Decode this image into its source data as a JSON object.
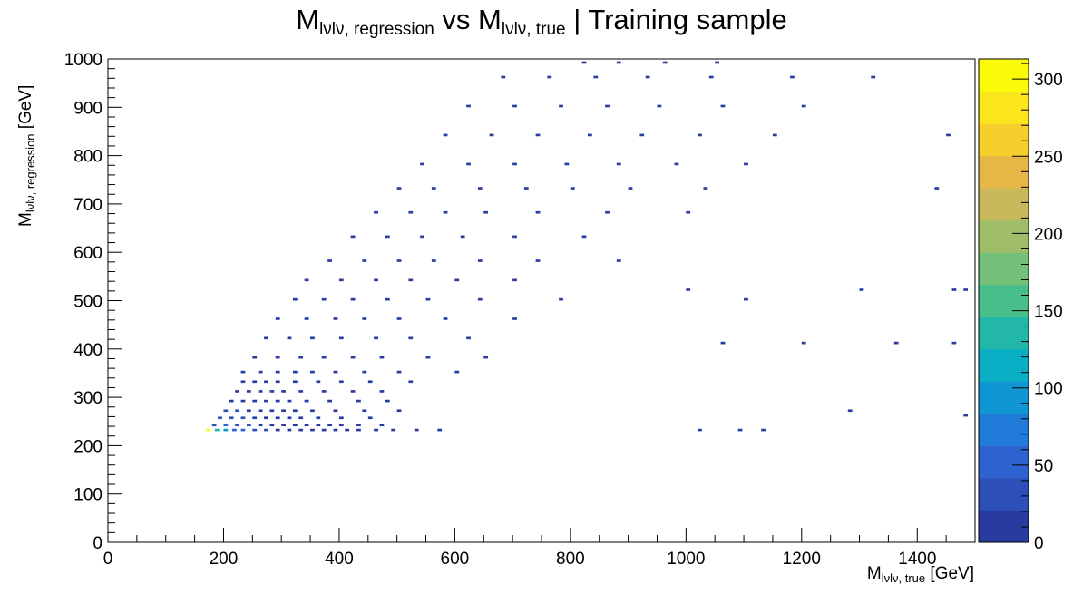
{
  "chart_data": {
    "type": "heatmap",
    "title_main_1": "M",
    "title_sub_1": "lνlν, regression",
    "title_mid": " vs M",
    "title_sub_2": "lνlν, true",
    "title_end": " | Training sample",
    "xlabel_main": "M",
    "xlabel_sub": "lνlν, true",
    "xlabel_unit": " [GeV]",
    "ylabel_main": "M",
    "ylabel_sub": "lνlν, regression",
    "ylabel_unit": " [GeV]",
    "xlim": [
      0,
      1500
    ],
    "ylim": [
      0,
      1000
    ],
    "xticks": [
      0,
      200,
      400,
      600,
      800,
      1000,
      1200,
      1400
    ],
    "yticks": [
      0,
      100,
      200,
      300,
      400,
      500,
      600,
      700,
      800,
      900,
      1000
    ],
    "colorbar": {
      "range": [
        0,
        313
      ],
      "ticks": [
        0,
        50,
        100,
        150,
        200,
        250,
        300
      ]
    },
    "bin_width": [
      7.5,
      5.0
    ],
    "points": [
      [
        170,
        230,
        310
      ],
      [
        185,
        230,
        140
      ],
      [
        200,
        230,
        90
      ],
      [
        215,
        230,
        60
      ],
      [
        230,
        230,
        45
      ],
      [
        250,
        230,
        35
      ],
      [
        270,
        230,
        25
      ],
      [
        290,
        230,
        20
      ],
      [
        310,
        230,
        15
      ],
      [
        330,
        230,
        12
      ],
      [
        350,
        230,
        10
      ],
      [
        370,
        230,
        8
      ],
      [
        390,
        230,
        6
      ],
      [
        410,
        230,
        5
      ],
      [
        430,
        230,
        4
      ],
      [
        460,
        230,
        3
      ],
      [
        490,
        230,
        2
      ],
      [
        530,
        230,
        2
      ],
      [
        570,
        230,
        1
      ],
      [
        180,
        240,
        30
      ],
      [
        200,
        240,
        45
      ],
      [
        220,
        240,
        35
      ],
      [
        240,
        240,
        25
      ],
      [
        260,
        240,
        20
      ],
      [
        280,
        240,
        15
      ],
      [
        300,
        240,
        12
      ],
      [
        320,
        240,
        10
      ],
      [
        340,
        240,
        8
      ],
      [
        360,
        240,
        6
      ],
      [
        380,
        240,
        5
      ],
      [
        400,
        240,
        4
      ],
      [
        430,
        240,
        3
      ],
      [
        470,
        240,
        2
      ],
      [
        190,
        255,
        28
      ],
      [
        210,
        255,
        35
      ],
      [
        230,
        255,
        25
      ],
      [
        250,
        255,
        18
      ],
      [
        270,
        255,
        14
      ],
      [
        290,
        255,
        10
      ],
      [
        310,
        255,
        8
      ],
      [
        330,
        255,
        6
      ],
      [
        360,
        255,
        5
      ],
      [
        400,
        255,
        3
      ],
      [
        450,
        255,
        2
      ],
      [
        200,
        270,
        22
      ],
      [
        220,
        270,
        28
      ],
      [
        240,
        270,
        20
      ],
      [
        260,
        270,
        15
      ],
      [
        280,
        270,
        12
      ],
      [
        300,
        270,
        9
      ],
      [
        320,
        270,
        7
      ],
      [
        350,
        270,
        5
      ],
      [
        390,
        270,
        3
      ],
      [
        440,
        270,
        2
      ],
      [
        500,
        270,
        1
      ],
      [
        210,
        290,
        15
      ],
      [
        230,
        290,
        20
      ],
      [
        250,
        290,
        16
      ],
      [
        270,
        290,
        12
      ],
      [
        290,
        290,
        9
      ],
      [
        310,
        290,
        7
      ],
      [
        340,
        290,
        5
      ],
      [
        380,
        290,
        3
      ],
      [
        430,
        290,
        2
      ],
      [
        480,
        290,
        1
      ],
      [
        220,
        310,
        10
      ],
      [
        240,
        310,
        14
      ],
      [
        260,
        310,
        12
      ],
      [
        280,
        310,
        9
      ],
      [
        300,
        310,
        7
      ],
      [
        330,
        310,
        5
      ],
      [
        370,
        310,
        3
      ],
      [
        420,
        310,
        2
      ],
      [
        470,
        310,
        1
      ],
      [
        230,
        330,
        8
      ],
      [
        250,
        330,
        10
      ],
      [
        270,
        330,
        9
      ],
      [
        290,
        330,
        7
      ],
      [
        320,
        330,
        5
      ],
      [
        360,
        330,
        4
      ],
      [
        400,
        330,
        3
      ],
      [
        450,
        330,
        2
      ],
      [
        520,
        330,
        1
      ],
      [
        230,
        350,
        5
      ],
      [
        260,
        350,
        6
      ],
      [
        290,
        350,
        5
      ],
      [
        320,
        350,
        4
      ],
      [
        350,
        350,
        3
      ],
      [
        390,
        350,
        2
      ],
      [
        440,
        350,
        2
      ],
      [
        500,
        350,
        1
      ],
      [
        600,
        350,
        1
      ],
      [
        250,
        380,
        3
      ],
      [
        290,
        380,
        4
      ],
      [
        330,
        380,
        3
      ],
      [
        370,
        380,
        3
      ],
      [
        420,
        380,
        2
      ],
      [
        470,
        380,
        1
      ],
      [
        550,
        380,
        1
      ],
      [
        650,
        380,
        1
      ],
      [
        270,
        420,
        2
      ],
      [
        310,
        420,
        3
      ],
      [
        350,
        420,
        3
      ],
      [
        400,
        420,
        2
      ],
      [
        460,
        420,
        1
      ],
      [
        520,
        420,
        1
      ],
      [
        620,
        420,
        1
      ],
      [
        290,
        460,
        2
      ],
      [
        340,
        460,
        2
      ],
      [
        390,
        460,
        2
      ],
      [
        440,
        460,
        1
      ],
      [
        500,
        460,
        1
      ],
      [
        580,
        460,
        1
      ],
      [
        700,
        460,
        1
      ],
      [
        320,
        500,
        2
      ],
      [
        370,
        500,
        2
      ],
      [
        420,
        500,
        2
      ],
      [
        480,
        500,
        1
      ],
      [
        550,
        500,
        1
      ],
      [
        640,
        500,
        1
      ],
      [
        780,
        500,
        1
      ],
      [
        340,
        540,
        1
      ],
      [
        400,
        540,
        2
      ],
      [
        460,
        540,
        1
      ],
      [
        520,
        540,
        1
      ],
      [
        600,
        540,
        1
      ],
      [
        700,
        540,
        1
      ],
      [
        380,
        580,
        1
      ],
      [
        440,
        580,
        1
      ],
      [
        500,
        580,
        1
      ],
      [
        560,
        580,
        1
      ],
      [
        640,
        580,
        1
      ],
      [
        740,
        580,
        1
      ],
      [
        880,
        580,
        1
      ],
      [
        420,
        630,
        1
      ],
      [
        480,
        630,
        1
      ],
      [
        540,
        630,
        1
      ],
      [
        610,
        630,
        1
      ],
      [
        700,
        630,
        1
      ],
      [
        820,
        630,
        1
      ],
      [
        460,
        680,
        1
      ],
      [
        520,
        680,
        1
      ],
      [
        580,
        680,
        1
      ],
      [
        650,
        680,
        1
      ],
      [
        740,
        680,
        1
      ],
      [
        860,
        680,
        1
      ],
      [
        1000,
        680,
        1
      ],
      [
        500,
        730,
        1
      ],
      [
        560,
        730,
        1
      ],
      [
        640,
        730,
        1
      ],
      [
        720,
        730,
        1
      ],
      [
        800,
        730,
        1
      ],
      [
        900,
        730,
        1
      ],
      [
        1030,
        730,
        1
      ],
      [
        1430,
        730,
        1
      ],
      [
        540,
        780,
        1
      ],
      [
        620,
        780,
        1
      ],
      [
        700,
        780,
        1
      ],
      [
        790,
        780,
        1
      ],
      [
        880,
        780,
        1
      ],
      [
        980,
        780,
        1
      ],
      [
        1100,
        780,
        1
      ],
      [
        580,
        840,
        1
      ],
      [
        660,
        840,
        1
      ],
      [
        740,
        840,
        1
      ],
      [
        830,
        840,
        1
      ],
      [
        920,
        840,
        1
      ],
      [
        1020,
        840,
        1
      ],
      [
        1150,
        840,
        1
      ],
      [
        1450,
        840,
        1
      ],
      [
        620,
        900,
        1
      ],
      [
        700,
        900,
        1
      ],
      [
        780,
        900,
        1
      ],
      [
        860,
        900,
        1
      ],
      [
        950,
        900,
        1
      ],
      [
        1060,
        900,
        1
      ],
      [
        1200,
        900,
        1
      ],
      [
        680,
        960,
        1
      ],
      [
        760,
        960,
        1
      ],
      [
        840,
        960,
        1
      ],
      [
        930,
        960,
        1
      ],
      [
        1040,
        960,
        1
      ],
      [
        1180,
        960,
        1
      ],
      [
        1320,
        960,
        1
      ],
      [
        820,
        990,
        1
      ],
      [
        880,
        990,
        1
      ],
      [
        960,
        990,
        1
      ],
      [
        1050,
        990,
        1
      ],
      [
        1000,
        520,
        1
      ],
      [
        1100,
        500,
        1
      ],
      [
        1300,
        520,
        1
      ],
      [
        1460,
        520,
        1
      ],
      [
        1480,
        520,
        1
      ],
      [
        1060,
        410,
        1
      ],
      [
        1200,
        410,
        1
      ],
      [
        1360,
        410,
        1
      ],
      [
        1460,
        410,
        1
      ],
      [
        1280,
        270,
        1
      ],
      [
        1480,
        260,
        1
      ],
      [
        1130,
        230,
        1
      ],
      [
        1090,
        230,
        1
      ],
      [
        1020,
        230,
        1
      ]
    ]
  }
}
